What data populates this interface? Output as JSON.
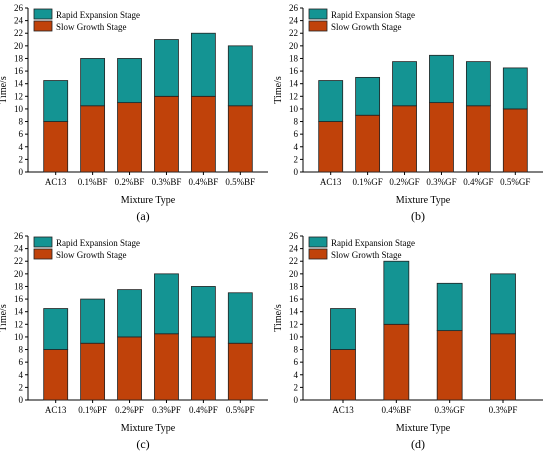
{
  "colors": {
    "rapid": "#149493",
    "slow": "#c0420a",
    "axis": "#000000"
  },
  "chart_data": [
    {
      "type": "bar",
      "stacked": true,
      "panel_label": "(a)",
      "xlabel": "Mixture Type",
      "ylabel": "Time/s",
      "ylim": [
        0,
        26
      ],
      "yticks": [
        0,
        2,
        4,
        6,
        8,
        10,
        12,
        14,
        16,
        18,
        20,
        22,
        24,
        26
      ],
      "legend_position": "top-left",
      "categories": [
        "AC13",
        "0.1%BF",
        "0.2%BF",
        "0.3%BF",
        "0.4%BF",
        "0.5%BF"
      ],
      "series": [
        {
          "name": "Slow Growth Stage",
          "values": [
            8,
            10.5,
            11,
            12,
            12,
            10.5
          ]
        },
        {
          "name": "Rapid Expansion Stage",
          "values": [
            6.5,
            7.5,
            7,
            9,
            10,
            9.5
          ]
        }
      ]
    },
    {
      "type": "bar",
      "stacked": true,
      "panel_label": "(b)",
      "xlabel": "Mixture Type",
      "ylabel": "Time/s",
      "ylim": [
        0,
        26
      ],
      "yticks": [
        0,
        2,
        4,
        6,
        8,
        10,
        12,
        14,
        16,
        18,
        20,
        22,
        24,
        26
      ],
      "legend_position": "top-left",
      "categories": [
        "AC13",
        "0.1%GF",
        "0.2%GF",
        "0.3%GF",
        "0.4%GF",
        "0.5%GF"
      ],
      "series": [
        {
          "name": "Slow Growth Stage",
          "values": [
            8,
            9,
            10.5,
            11,
            10.5,
            10
          ]
        },
        {
          "name": "Rapid Expansion Stage",
          "values": [
            6.5,
            6,
            7,
            7.5,
            7,
            6.5
          ]
        }
      ]
    },
    {
      "type": "bar",
      "stacked": true,
      "panel_label": "(c)",
      "xlabel": "Mixture Type",
      "ylabel": "Time/s",
      "ylim": [
        0,
        26
      ],
      "yticks": [
        0,
        2,
        4,
        6,
        8,
        10,
        12,
        14,
        16,
        18,
        20,
        22,
        24,
        26
      ],
      "legend_position": "top-left",
      "categories": [
        "AC13",
        "0.1%PF",
        "0.2%PF",
        "0.3%PF",
        "0.4%PF",
        "0.5%PF"
      ],
      "series": [
        {
          "name": "Slow Growth Stage",
          "values": [
            8,
            9,
            10,
            10.5,
            10,
            9
          ]
        },
        {
          "name": "Rapid Expansion Stage",
          "values": [
            6.5,
            7,
            7.5,
            9.5,
            8,
            8
          ]
        }
      ]
    },
    {
      "type": "bar",
      "stacked": true,
      "panel_label": "(d)",
      "xlabel": "Mixture Type",
      "ylabel": "Time/s",
      "ylim": [
        0,
        26
      ],
      "yticks": [
        0,
        2,
        4,
        6,
        8,
        10,
        12,
        14,
        16,
        18,
        20,
        22,
        24,
        26
      ],
      "legend_position": "top-left",
      "categories": [
        "AC13",
        "0.4%BF",
        "0.3%GF",
        "0.3%PF"
      ],
      "series": [
        {
          "name": "Slow Growth Stage",
          "values": [
            8,
            12,
            11,
            10.5
          ]
        },
        {
          "name": "Rapid Expansion Stage",
          "values": [
            6.5,
            10,
            7.5,
            9.5
          ]
        }
      ]
    }
  ]
}
